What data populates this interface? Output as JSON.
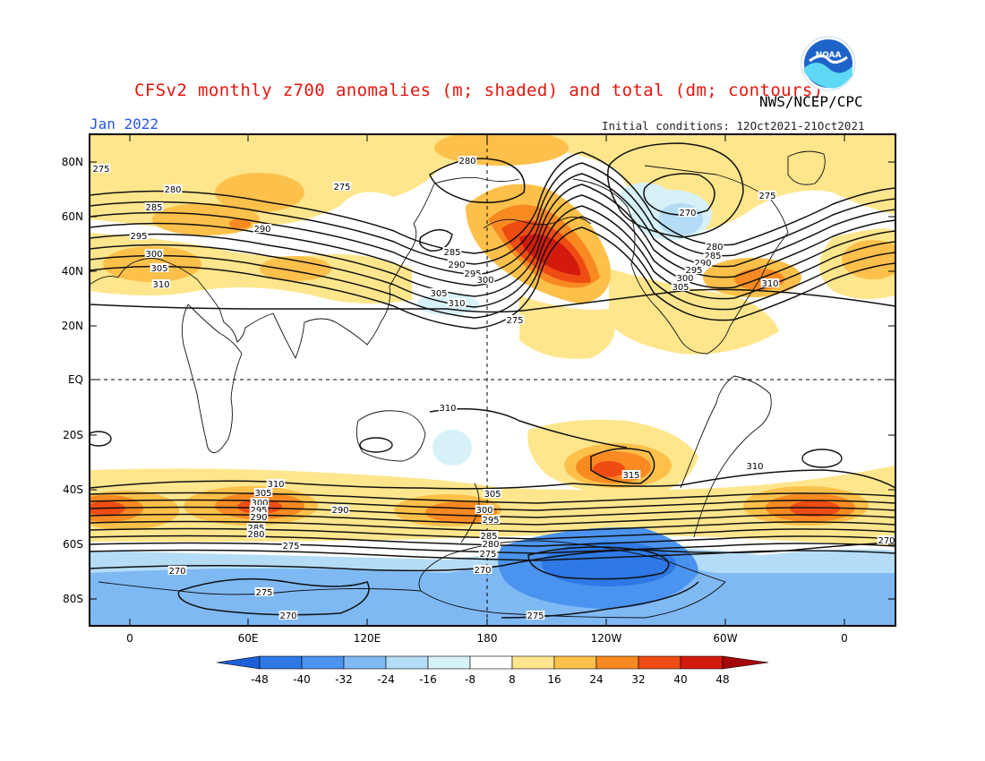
{
  "header": {
    "title": "CFSv2 monthly z700 anomalies (m; shaded) and total (dm; contours)",
    "agency": "NWS/NCEP/CPC",
    "month": "Jan 2022",
    "initial_conditions": "Initial conditions: 12Oct2021-21Oct2021"
  },
  "logo": {
    "text": "NOAA"
  },
  "axes": {
    "lat_labels": [
      "80N",
      "60N",
      "40N",
      "20N",
      "EQ",
      "20S",
      "40S",
      "60S",
      "80S"
    ],
    "lon_labels": [
      "0",
      "60E",
      "120E",
      "180",
      "120W",
      "60W",
      "0"
    ]
  },
  "colorbar": {
    "labels": [
      "-48",
      "-40",
      "-32",
      "-24",
      "-16",
      "-8",
      "8",
      "16",
      "24",
      "32",
      "40",
      "48"
    ],
    "colors": [
      "#1d5fd6",
      "#2e79e6",
      "#4a93ee",
      "#7fb9f4",
      "#b4dcf7",
      "#d7f1f9",
      "#ffffff",
      "#ffe68c",
      "#fdc04a",
      "#f98a22",
      "#ef4c14",
      "#d41a0d",
      "#a50808"
    ]
  },
  "contour_labels": [
    "275",
    "280",
    "285",
    "295",
    "300",
    "305",
    "310",
    "290",
    "275",
    "280",
    "285",
    "290",
    "295",
    "300",
    "305",
    "310",
    "275",
    "280",
    "285",
    "290",
    "295",
    "300",
    "305",
    "310",
    "275",
    "270",
    "310",
    "315",
    "310",
    "305",
    "300",
    "295",
    "290",
    "285",
    "280",
    "275",
    "270",
    "310",
    "305",
    "300",
    "295",
    "290",
    "285",
    "280",
    "275",
    "270",
    "275",
    "270",
    "275",
    "270"
  ]
}
